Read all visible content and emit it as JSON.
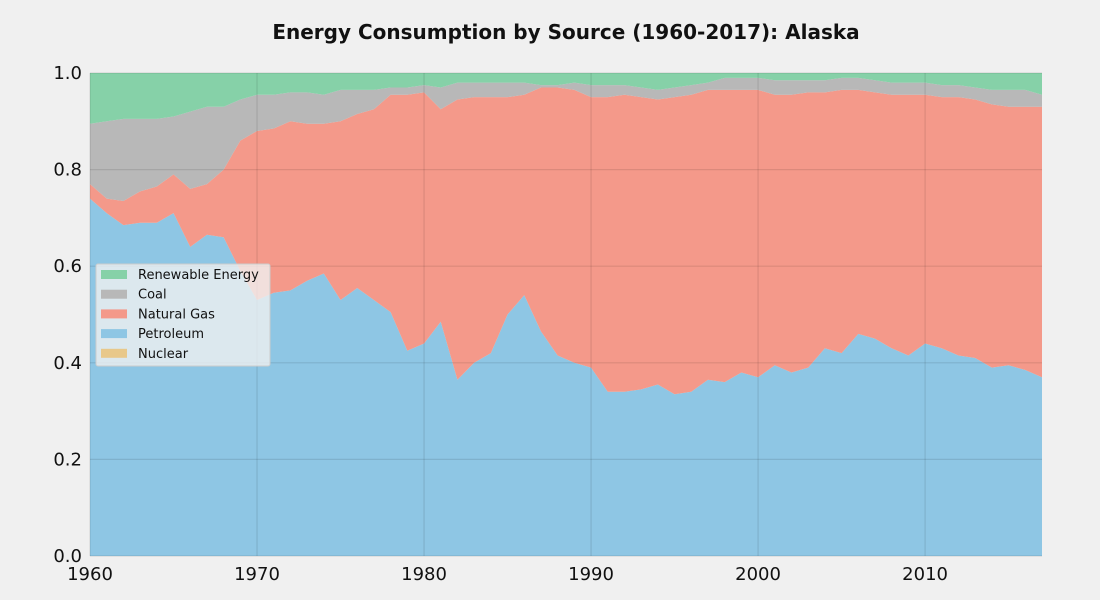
{
  "chart_data": {
    "type": "area",
    "stacked": true,
    "normalized": true,
    "title": "Energy Consumption by Source (1960-2017): Alaska",
    "xlabel": "",
    "ylabel": "",
    "xlim": [
      1960,
      2017
    ],
    "ylim": [
      0,
      1
    ],
    "xticks": [
      1960,
      1970,
      1980,
      1990,
      2000,
      2010
    ],
    "yticks": [
      "0.0",
      "0.2",
      "0.4",
      "0.6",
      "0.8",
      "1.0"
    ],
    "grid": true,
    "legend_position": "center-left",
    "legend_order": [
      "Renewable Energy",
      "Coal",
      "Natural Gas",
      "Petroleum",
      "Nuclear"
    ],
    "x": [
      1960,
      1961,
      1962,
      1963,
      1964,
      1965,
      1966,
      1967,
      1968,
      1969,
      1970,
      1971,
      1972,
      1973,
      1974,
      1975,
      1976,
      1977,
      1978,
      1979,
      1980,
      1981,
      1982,
      1983,
      1984,
      1985,
      1986,
      1987,
      1988,
      1989,
      1990,
      1991,
      1992,
      1993,
      1994,
      1995,
      1996,
      1997,
      1998,
      1999,
      2000,
      2001,
      2002,
      2003,
      2004,
      2005,
      2006,
      2007,
      2008,
      2009,
      2010,
      2011,
      2012,
      2013,
      2014,
      2015,
      2016,
      2017
    ],
    "series": [
      {
        "name": "Nuclear",
        "color": "#e8c88a",
        "values": [
          0,
          0,
          0,
          0,
          0,
          0,
          0,
          0,
          0,
          0,
          0,
          0,
          0,
          0,
          0,
          0,
          0,
          0,
          0,
          0,
          0,
          0,
          0,
          0,
          0,
          0,
          0,
          0,
          0,
          0,
          0,
          0,
          0,
          0,
          0,
          0,
          0,
          0,
          0,
          0,
          0,
          0,
          0,
          0,
          0,
          0,
          0,
          0,
          0,
          0,
          0,
          0,
          0,
          0,
          0,
          0,
          0,
          0
        ]
      },
      {
        "name": "Petroleum",
        "color": "#8ec6e4",
        "values": [
          0.74,
          0.71,
          0.685,
          0.69,
          0.69,
          0.71,
          0.64,
          0.665,
          0.66,
          0.59,
          0.53,
          0.545,
          0.55,
          0.57,
          0.585,
          0.53,
          0.555,
          0.53,
          0.505,
          0.425,
          0.44,
          0.485,
          0.365,
          0.4,
          0.42,
          0.5,
          0.54,
          0.465,
          0.415,
          0.4,
          0.39,
          0.34,
          0.34,
          0.345,
          0.355,
          0.335,
          0.34,
          0.365,
          0.36,
          0.38,
          0.37,
          0.395,
          0.38,
          0.39,
          0.43,
          0.42,
          0.46,
          0.45,
          0.43,
          0.415,
          0.44,
          0.43,
          0.415,
          0.41,
          0.39,
          0.395,
          0.385,
          0.37
        ]
      },
      {
        "name": "Natural Gas",
        "color": "#f4998a",
        "values": [
          0.03,
          0.03,
          0.05,
          0.065,
          0.075,
          0.08,
          0.12,
          0.105,
          0.14,
          0.27,
          0.35,
          0.34,
          0.35,
          0.325,
          0.31,
          0.37,
          0.36,
          0.395,
          0.45,
          0.53,
          0.52,
          0.44,
          0.58,
          0.55,
          0.53,
          0.45,
          0.415,
          0.505,
          0.555,
          0.565,
          0.56,
          0.61,
          0.615,
          0.605,
          0.59,
          0.615,
          0.615,
          0.6,
          0.605,
          0.585,
          0.595,
          0.56,
          0.575,
          0.57,
          0.53,
          0.545,
          0.505,
          0.51,
          0.525,
          0.54,
          0.515,
          0.52,
          0.535,
          0.535,
          0.545,
          0.535,
          0.545,
          0.56
        ]
      },
      {
        "name": "Coal",
        "color": "#b8b8b8",
        "values": [
          0.125,
          0.16,
          0.17,
          0.15,
          0.14,
          0.12,
          0.16,
          0.16,
          0.13,
          0.085,
          0.075,
          0.07,
          0.06,
          0.065,
          0.06,
          0.065,
          0.05,
          0.04,
          0.015,
          0.015,
          0.015,
          0.045,
          0.035,
          0.03,
          0.03,
          0.03,
          0.025,
          0.005,
          0.005,
          0.015,
          0.025,
          0.025,
          0.02,
          0.02,
          0.02,
          0.02,
          0.02,
          0.015,
          0.025,
          0.025,
          0.025,
          0.03,
          0.03,
          0.025,
          0.025,
          0.025,
          0.025,
          0.025,
          0.025,
          0.025,
          0.025,
          0.025,
          0.025,
          0.025,
          0.03,
          0.035,
          0.035,
          0.025
        ]
      },
      {
        "name": "Renewable Energy",
        "color": "#86d1a8",
        "values": [
          0.105,
          0.1,
          0.095,
          0.095,
          0.095,
          0.09,
          0.08,
          0.07,
          0.07,
          0.055,
          0.045,
          0.045,
          0.04,
          0.04,
          0.045,
          0.035,
          0.035,
          0.035,
          0.03,
          0.03,
          0.025,
          0.03,
          0.02,
          0.02,
          0.02,
          0.02,
          0.02,
          0.025,
          0.025,
          0.02,
          0.025,
          0.025,
          0.025,
          0.03,
          0.035,
          0.03,
          0.025,
          0.02,
          0.01,
          0.01,
          0.01,
          0.015,
          0.015,
          0.015,
          0.015,
          0.01,
          0.01,
          0.015,
          0.02,
          0.02,
          0.02,
          0.025,
          0.025,
          0.03,
          0.035,
          0.035,
          0.035,
          0.045
        ]
      }
    ]
  }
}
